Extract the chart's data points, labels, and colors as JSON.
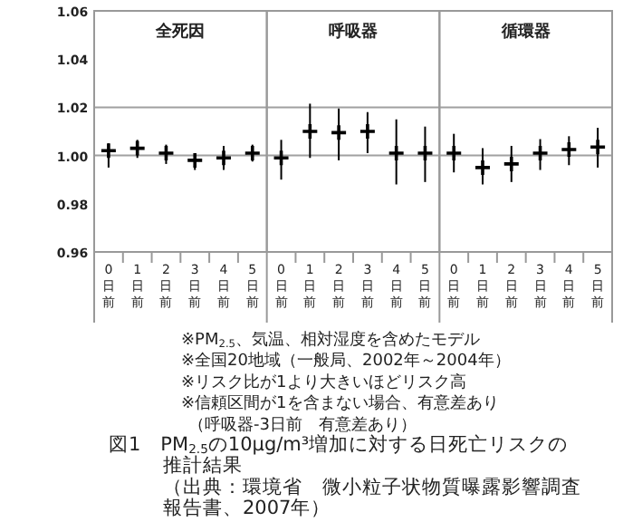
{
  "chart_data": [
    {
      "type": "scatter",
      "color": "#000000",
      "marker": "cross",
      "title": "全死因",
      "categories": [
        "0日前",
        "1日前",
        "2日前",
        "3日前",
        "4日前",
        "5日前"
      ],
      "values": [
        1.002,
        1.003,
        1.001,
        0.998,
        0.999,
        1.001
      ],
      "errors": [
        [
          0.995,
          1.005
        ],
        [
          0.999,
          1.0065
        ],
        [
          0.9965,
          1.0045
        ],
        [
          0.994,
          1.0
        ],
        [
          0.994,
          1.004
        ],
        [
          0.9975,
          1.0045
        ]
      ],
      "ylim": [
        0.96,
        1.06
      ],
      "yticks": [
        {
          "value": 0.96,
          "label": "0.96"
        },
        {
          "value": 0.98,
          "label": "0.98"
        },
        {
          "value": 1.0,
          "label": "1.00"
        },
        {
          "value": 1.02,
          "label": "1.02"
        },
        {
          "value": 1.04,
          "label": "1.04"
        },
        {
          "value": 1.06,
          "label": "1.06"
        }
      ],
      "ref_lines": [
        {
          "axis": "y",
          "value": 1.0,
          "color": "#a0a0a0"
        },
        {
          "axis": "y",
          "value": 1.02,
          "color": "#a0a0a0"
        }
      ],
      "annotations": [
        "※PM$_{2.5}$、気温、相対湿度を含めたモデル",
        "※全国20地域（一般局、2002年～2004年）",
        "※リスク比が1より大きいほどリスク高",
        "※信頼区間が1を含まない場合、有意差あり",
        "（呼吸器-3日前　有意差あり）",
        "図1　PM$_{2.5}$の10μg/m³増加に対する日死亡リスクの",
        "推計結果",
        "（出典：環境省　微小粒子状物質曝露影響調査",
        "報告書、2007年）"
      ]
    },
    {
      "type": "scatter",
      "color": "#000000",
      "marker": "cross",
      "title": "呼吸器",
      "categories": [
        "0日前",
        "1日前",
        "2日前",
        "3日前",
        "4日前",
        "5日前"
      ],
      "values": [
        0.999,
        1.01,
        1.0095,
        1.01,
        1.001,
        1.001
      ],
      "errors": [
        [
          0.99,
          1.0065
        ],
        [
          0.999,
          1.0215
        ],
        [
          0.998,
          1.0195
        ],
        [
          1.001,
          1.018
        ],
        [
          0.988,
          1.015
        ],
        [
          0.989,
          1.012
        ]
      ],
      "ylim": [
        0.96,
        1.06
      ],
      "tick_labels": "x",
      "ref_lines": [
        {
          "axis": "y",
          "value": 1.0,
          "color": "#a0a0a0"
        },
        {
          "axis": "y",
          "value": 1.02,
          "color": "#a0a0a0"
        }
      ]
    },
    {
      "type": "scatter",
      "color": "#000000",
      "marker": "cross",
      "title": "循環器",
      "categories": [
        "0日前",
        "1日前",
        "2日前",
        "3日前",
        "4日前",
        "5日前"
      ],
      "values": [
        1.001,
        0.995,
        0.9965,
        1.001,
        1.0025,
        1.0035
      ],
      "errors": [
        [
          0.993,
          1.009
        ],
        [
          0.988,
          1.003
        ],
        [
          0.989,
          1.004
        ],
        [
          0.994,
          1.0068
        ],
        [
          0.996,
          1.008
        ],
        [
          0.995,
          1.0115
        ]
      ],
      "ylim": [
        0.96,
        1.06
      ],
      "tick_labels": "x",
      "ref_lines": [
        {
          "axis": "y",
          "value": 1.0,
          "color": "#a0a0a0"
        },
        {
          "axis": "y",
          "value": 1.02,
          "color": "#a0a0a0"
        }
      ]
    }
  ]
}
